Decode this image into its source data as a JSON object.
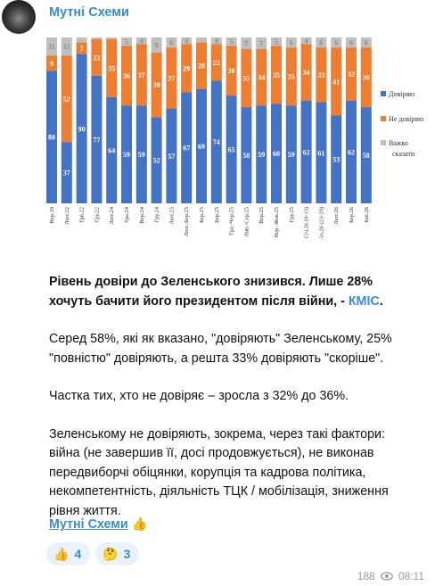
{
  "header": {
    "channel": "Мутні Схеми"
  },
  "chart_data": {
    "type": "bar",
    "stacked": true,
    "categories": [
      "Вер.19",
      "Лют.22",
      "Трв.22",
      "Гру.22",
      "Лют.24",
      "Тра.24",
      "Вер.24",
      "Гру.24",
      "Лют.25",
      "Лют.-Бер.25",
      "Бер.25",
      "Бер.25",
      "Тра.-Чер.25",
      "Лип.-Сер.25",
      "Вер.25",
      "Вер.-Жов.25",
      "Гру.25",
      "Січ.26 (9-13)",
      "Січ.26 (23-29)",
      "Лют.26",
      "Бер.26",
      "Кві.26"
    ],
    "series": [
      {
        "name": "Довіряю",
        "color": "#4472c4",
        "values": [
          80,
          37,
          90,
          77,
          64,
          59,
          59,
          52,
          57,
          67,
          69,
          74,
          65,
          58,
          59,
          60,
          59,
          62,
          61,
          53,
          62,
          58
        ]
      },
      {
        "name": "Не довіряю",
        "color": "#ed7d31",
        "values": [
          9,
          52,
          7,
          22,
          35,
          36,
          37,
          39,
          37,
          29,
          28,
          22,
          30,
          35,
          34,
          35,
          35,
          34,
          33,
          41,
          32,
          36
        ]
      },
      {
        "name": "Важко сказати",
        "color": "#bfbfbf",
        "values": [
          11,
          11,
          3,
          1,
          1,
          5,
          4,
          9,
          6,
          4,
          3,
          4,
          5,
          7,
          7,
          5,
          6,
          4,
          6,
          6,
          6,
          6
        ]
      }
    ],
    "ylim": [
      0,
      100
    ],
    "legend": "right"
  },
  "post": {
    "headline": "Рівень довіри до Зеленського знизився. Лише 28% хочуть бачити його президентом після війни, - ",
    "headline_link": "КМІС",
    "headline_end": ".",
    "paragraphs": [
      "Серед 58%, які як вказано, \"довіряють\" Зеленському, 25% \"повністю\" довіряють, а решта 33% довіряють \"скоріше\".",
      "Частка тих, хто не довіряє – зросла з 32% до 36%.",
      "Зеленському не довіряють, зокрема, через такі фактори: війна (не завершив її, досі продовжується), не виконав передвиборчі обіцянки, корупція та кадрова політика, некомпетентність, діяльність ТЦК / мобілізація, зниження рівня життя."
    ],
    "signature": "Мутні Схеми",
    "signature_emoji": "👍"
  },
  "reactions": [
    {
      "emoji": "👍",
      "count": 4
    },
    {
      "emoji": "🤔",
      "count": 3
    }
  ],
  "footer": {
    "views": 188,
    "time": "08:11"
  }
}
